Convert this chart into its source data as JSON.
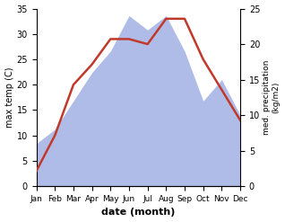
{
  "months": [
    "Jan",
    "Feb",
    "Mar",
    "Apr",
    "May",
    "Jun",
    "Jul",
    "Aug",
    "Sep",
    "Oct",
    "Nov",
    "Dec"
  ],
  "temperature": [
    3,
    10,
    20,
    24,
    29,
    29,
    28,
    33,
    33,
    25,
    19,
    13
  ],
  "precipitation": [
    6,
    8,
    12,
    16,
    19,
    24,
    22,
    24,
    19,
    12,
    15,
    10
  ],
  "temp_color": "#c0392b",
  "precip_color_fill": "#b0bce8",
  "ylabel_left": "max temp (C)",
  "ylabel_right": "med. precipitation\n(kg/m2)",
  "xlabel": "date (month)",
  "ylim_left": [
    0,
    35
  ],
  "ylim_right": [
    0,
    25
  ],
  "yticks_left": [
    0,
    5,
    10,
    15,
    20,
    25,
    30,
    35
  ],
  "yticks_right": [
    0,
    5,
    10,
    15,
    20,
    25
  ],
  "bg_color": "#ffffff"
}
